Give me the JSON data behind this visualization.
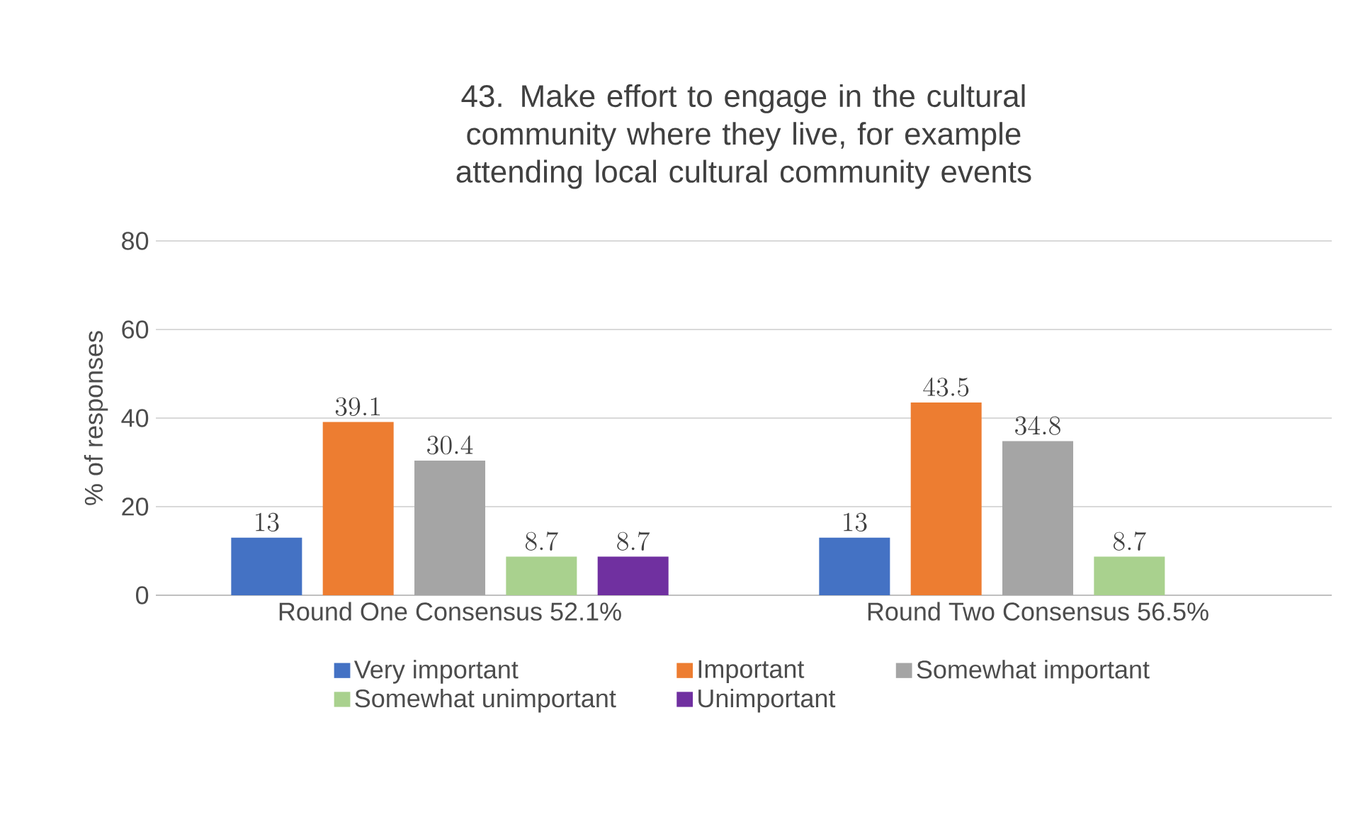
{
  "chart_data": {
    "type": "bar",
    "title": "43. Make effort to engage in the cultural community where they live, for example attending local cultural community events",
    "ylabel": "% of responses",
    "categories": [
      "Round One Consensus 52.1%",
      "Round Two Consensus 56.5%"
    ],
    "series": [
      {
        "name": "Very important",
        "color": "#4472c4",
        "values": [
          13,
          13
        ]
      },
      {
        "name": "Important",
        "color": "#ed7d31",
        "values": [
          39.1,
          43.5
        ]
      },
      {
        "name": "Somewhat important",
        "color": "#a5a5a5",
        "values": [
          30.4,
          34.8
        ]
      },
      {
        "name": "Somewhat unimportant",
        "color": "#a9d18e",
        "values": [
          8.7,
          8.7
        ]
      },
      {
        "name": "Unimportant",
        "color": "#7030a0",
        "values": [
          8.7,
          null
        ]
      }
    ],
    "ylim": [
      0,
      80
    ],
    "yticks": [
      0,
      20,
      40,
      60,
      80
    ],
    "grid": "y",
    "legend": "bottom",
    "data_labels": true
  }
}
